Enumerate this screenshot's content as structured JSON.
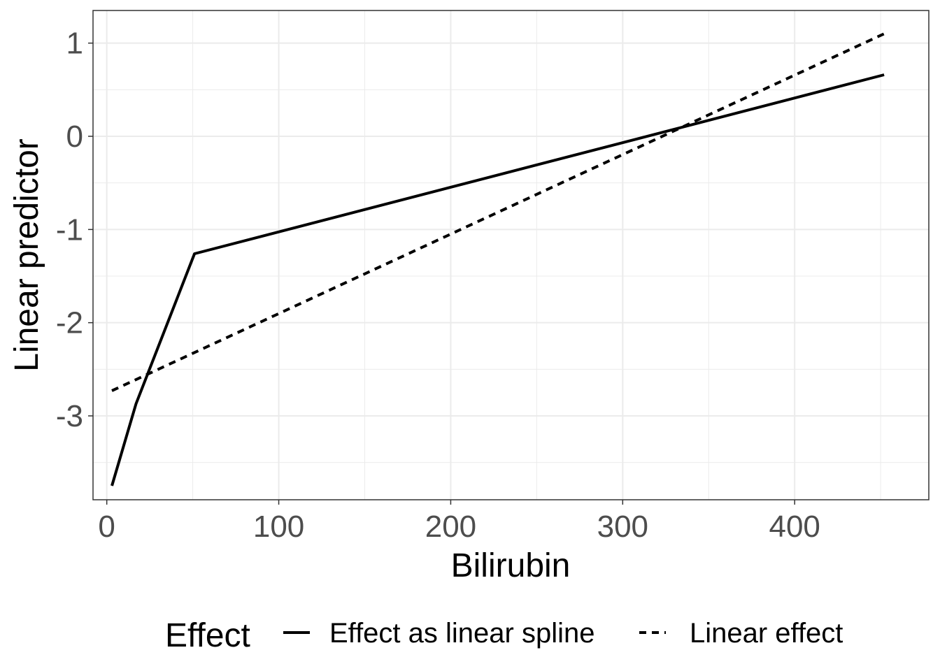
{
  "chart_data": {
    "type": "line",
    "xlabel": "Bilirubin",
    "ylabel": "Linear predictor",
    "xlim": [
      -8,
      478
    ],
    "ylim": [
      -3.9,
      1.35
    ],
    "x_ticks": [
      0,
      100,
      200,
      300,
      400
    ],
    "x_tick_labels": [
      "0",
      "100",
      "200",
      "300",
      "400"
    ],
    "y_ticks": [
      -3,
      -2,
      -1,
      0,
      1
    ],
    "y_tick_labels": [
      "-3",
      "-2",
      "-1",
      "0",
      "1"
    ],
    "grid": true,
    "legend": {
      "title": "Effect",
      "position": "bottom",
      "entries": [
        "Effect as linear spline",
        "Linear effect"
      ]
    },
    "series": [
      {
        "name": "Effect as linear spline",
        "line_style": "solid",
        "color": "#000000",
        "x": [
          3,
          17,
          51,
          452
        ],
        "y": [
          -3.75,
          -2.87,
          -1.26,
          0.66
        ]
      },
      {
        "name": "Linear effect",
        "line_style": "dashed",
        "color": "#000000",
        "x": [
          3,
          452
        ],
        "y": [
          -2.73,
          1.1
        ]
      }
    ]
  }
}
